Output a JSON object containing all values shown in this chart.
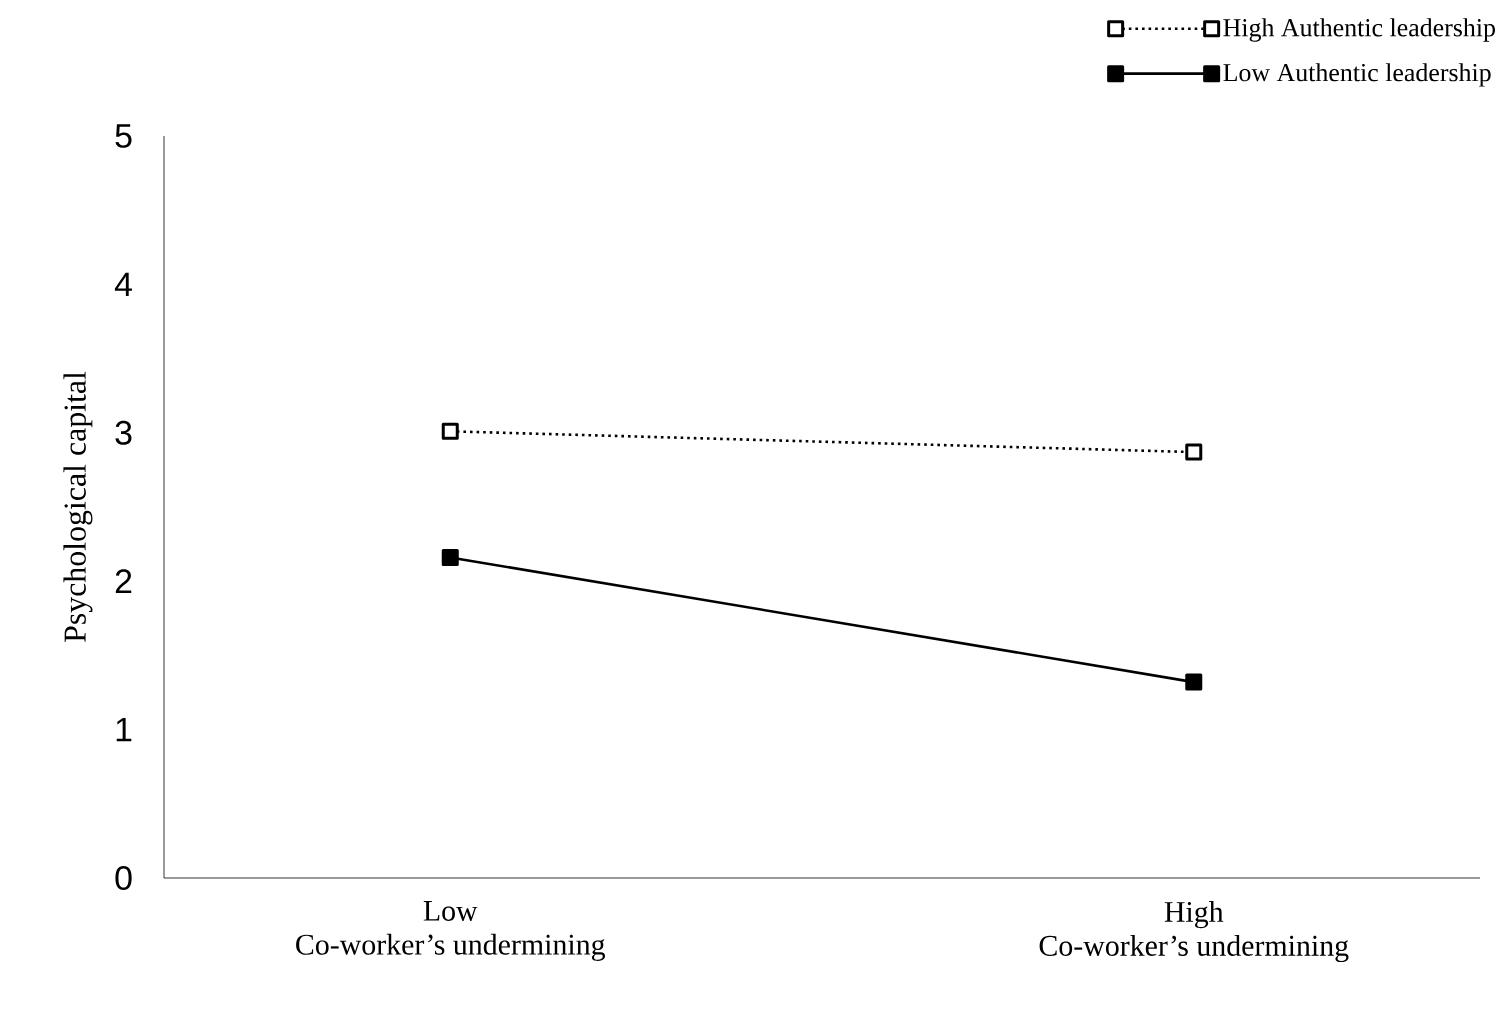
{
  "chart_data": {
    "type": "line",
    "ylabel": "Psychological capital",
    "xlabel": "Co-worker’s undermining",
    "categories": [
      "Low",
      "High"
    ],
    "series": [
      {
        "name": "High Authentic leadership",
        "color": "#000000",
        "values": [
          3.01,
          2.87
        ],
        "line_style": "dotted"
      },
      {
        "name": "Low Authentic leadership",
        "color": "#000000",
        "values": [
          2.16,
          1.32
        ],
        "line_style": "solid"
      }
    ],
    "ylim": [
      0,
      5
    ],
    "yticks": [
      0,
      1,
      2,
      3,
      4,
      5
    ],
    "marker": "square",
    "legend": "top right",
    "grid": false
  }
}
